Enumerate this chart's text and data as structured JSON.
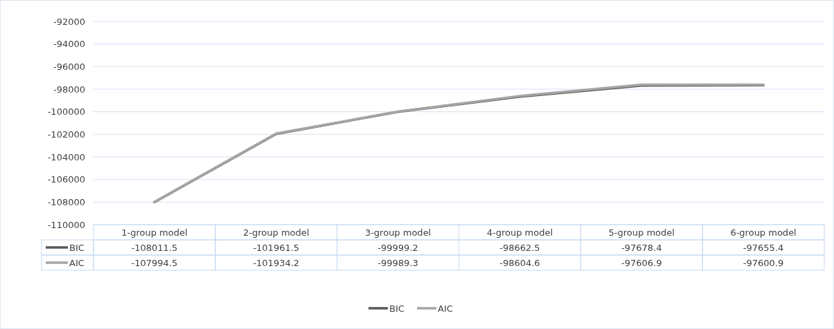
{
  "chart_data": {
    "type": "line",
    "categories": [
      "1-group model",
      "2-group model",
      "3-group model",
      "4-group model",
      "5-group model",
      "6-group model"
    ],
    "series": [
      {
        "name": "BIC",
        "color": "#595959",
        "values": [
          -108011.5,
          -101961.5,
          -99999.2,
          -98662.5,
          -97678.4,
          -97655.4
        ]
      },
      {
        "name": "AIC",
        "color": "#a5a5a5",
        "values": [
          -107994.5,
          -101934.2,
          -99989.3,
          -98604.6,
          -97606.9,
          -97600.9
        ]
      }
    ],
    "ylim": [
      -110000,
      -92000
    ],
    "yticks": [
      -110000,
      -108000,
      -106000,
      -104000,
      -102000,
      -100000,
      -98000,
      -96000,
      -94000,
      -92000
    ],
    "grid": "y",
    "legend": "bottom",
    "data_labels": true,
    "marker": "none",
    "line_style": "solid"
  }
}
